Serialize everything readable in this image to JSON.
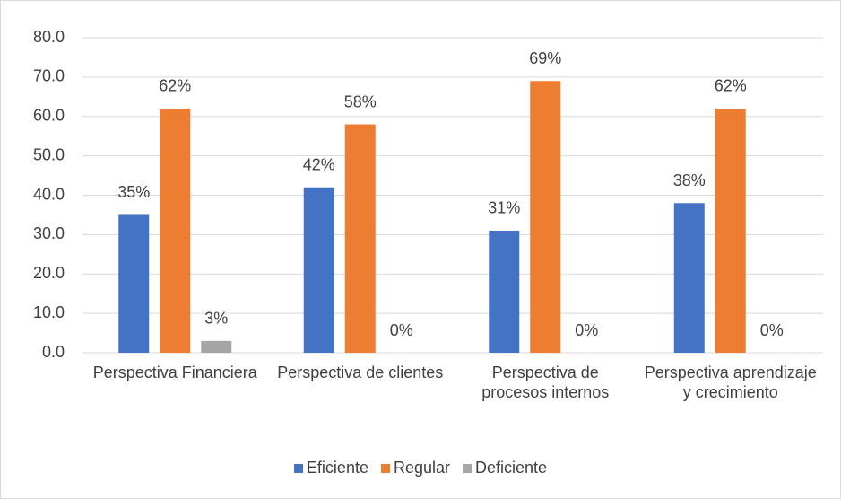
{
  "chart_data": {
    "type": "bar",
    "categories": [
      "Perspectiva Financiera",
      "Perspectiva de clientes",
      "Perspectiva de procesos internos",
      "Perspectiva aprendizaje y crecimiento"
    ],
    "series": [
      {
        "name": "Eficiente",
        "color": "#4472c4",
        "values": [
          35,
          42,
          31,
          38
        ],
        "value_labels": [
          "35%",
          "42%",
          "31%",
          "38%"
        ]
      },
      {
        "name": "Regular",
        "color": "#ed7d31",
        "values": [
          62,
          58,
          69,
          62
        ],
        "value_labels": [
          "62%",
          "58%",
          "69%",
          "62%"
        ]
      },
      {
        "name": "Deficiente",
        "color": "#a5a5a5",
        "values": [
          3,
          0,
          0,
          0
        ],
        "value_labels": [
          "3%",
          "0%",
          "0%",
          "0%"
        ]
      }
    ],
    "ylim": [
      0,
      80
    ],
    "yticks": [
      {
        "value": 0,
        "label": "0.0"
      },
      {
        "value": 10,
        "label": "10.0"
      },
      {
        "value": 20,
        "label": "20.0"
      },
      {
        "value": 30,
        "label": "30.0"
      },
      {
        "value": 40,
        "label": "40.0"
      },
      {
        "value": 50,
        "label": "50.0"
      },
      {
        "value": 60,
        "label": "60.0"
      },
      {
        "value": 70,
        "label": "70.0"
      },
      {
        "value": 80,
        "label": "80.0"
      }
    ],
    "grid": true,
    "legend": "bottom"
  }
}
